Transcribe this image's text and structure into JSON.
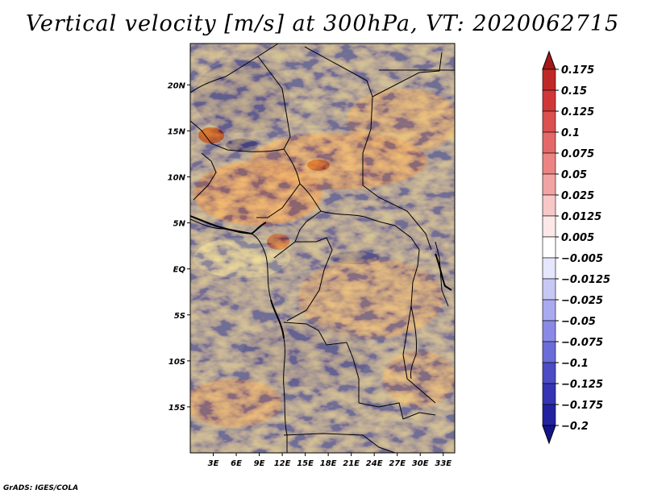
{
  "title": "Vertical velocity [m/s] at 300hPa, VT: 2020062715",
  "credit": "GrADS: IGES/COLA",
  "map": {
    "lon_range": [
      0,
      34.5
    ],
    "lat_range": [
      -20,
      24.5
    ],
    "x_ticks": [
      "3E",
      "6E",
      "9E",
      "12E",
      "15E",
      "18E",
      "21E",
      "24E",
      "27E",
      "30E",
      "33E"
    ],
    "y_ticks": [
      "20N",
      "15N",
      "10N",
      "5N",
      "EQ",
      "5S",
      "10S",
      "15S"
    ]
  },
  "colorbar": {
    "labels": [
      "0.175",
      "0.15",
      "0.125",
      "0.1",
      "0.075",
      "0.05",
      "0.025",
      "0.0125",
      "0.005",
      "−0.005",
      "−0.0125",
      "−0.025",
      "−0.05",
      "−0.075",
      "−0.1",
      "−0.125",
      "−0.175",
      "−0.2"
    ],
    "colors": [
      "#a51818",
      "#c02828",
      "#d03838",
      "#dc5050",
      "#e46868",
      "#ec8484",
      "#f2a4a4",
      "#f8c8c8",
      "#fce8e8",
      "#ffffff",
      "#e6e6fc",
      "#c8c8f4",
      "#aaaaf0",
      "#8a8ae6",
      "#6c6cd8",
      "#4c4cc6",
      "#3434b4",
      "#2222a0",
      "#14148a"
    ]
  }
}
